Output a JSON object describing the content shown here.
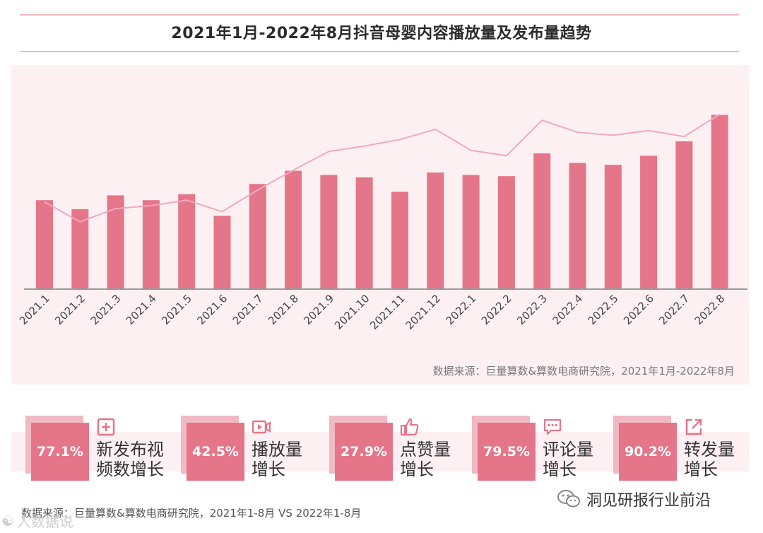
{
  "title": "2021年1月-2022年8月抖音母婴内容播放量及发布量趋势",
  "chart_source": "数据来源：巨量算数&算数电商研究院，2021年1月-2022年8月",
  "chart_data": {
    "type": "bar",
    "title": "2021年1月-2022年8月抖音母婴内容播放量及发布量趋势",
    "categories": [
      "2021.1",
      "2021.2",
      "2021.3",
      "2021.4",
      "2021.5",
      "2021.6",
      "2021.7",
      "2021.8",
      "2021.9",
      "2021.10",
      "2021.11",
      "2021.12",
      "2022.1",
      "2022.2",
      "2022.3",
      "2022.4",
      "2022.5",
      "2022.6",
      "2022.7",
      "2022.8"
    ],
    "series": [
      {
        "name": "播放量",
        "type": "bar",
        "color": "#e57588",
        "values": [
          148,
          133,
          156,
          148,
          158,
          122,
          175,
          197,
          190,
          186,
          162,
          194,
          190,
          188,
          226,
          210,
          207,
          222,
          246,
          290
        ]
      },
      {
        "name": "发布量",
        "type": "line",
        "color": "#f2a7c0",
        "values": [
          145,
          112,
          134,
          139,
          148,
          129,
          165,
          198,
          229,
          238,
          249,
          266,
          231,
          222,
          281,
          261,
          256,
          264,
          254,
          291
        ]
      }
    ],
    "xlabel": "",
    "ylabel": "",
    "ylim": [
      0,
      300
    ],
    "grid": false,
    "legend": "none"
  },
  "stats": [
    {
      "value": "77.1%",
      "line1": "新发布视",
      "line2": "频数增长",
      "icon": "plus-square-icon"
    },
    {
      "value": "42.5%",
      "line1": "播放量",
      "line2": "增长",
      "icon": "video-icon"
    },
    {
      "value": "27.9%",
      "line1": "点赞量",
      "line2": "增长",
      "icon": "thumbs-up-icon"
    },
    {
      "value": "79.5%",
      "line1": "评论量",
      "line2": "增长",
      "icon": "comment-icon"
    },
    {
      "value": "90.2%",
      "line1": "转发量",
      "line2": "增长",
      "icon": "share-icon"
    }
  ],
  "stats_source": "数据来源：巨量算数&算数电商研究院，2021年1-8月 VS 2022年1-8月",
  "wechat_name": "洞见研报行业前沿",
  "watermark": "人数据说",
  "colors": {
    "bar": "#e57588",
    "line": "#f2a7c0",
    "panel": "#fdf0f2",
    "accent": "#e57588"
  }
}
